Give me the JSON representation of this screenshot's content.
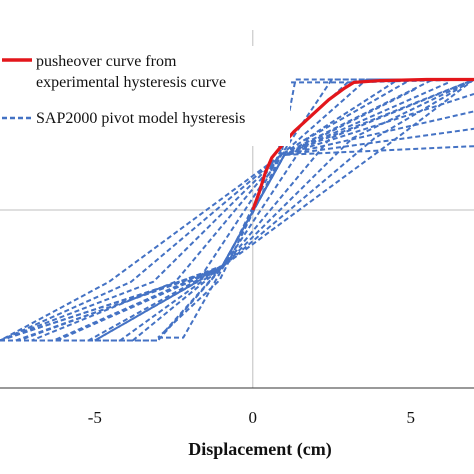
{
  "chart_data": {
    "type": "line",
    "xlabel": "Displacement (cm)",
    "ylabel": "",
    "xlim": [
      -8,
      7
    ],
    "x_ticks": [
      {
        "value": -5,
        "label": "-5"
      },
      {
        "value": 0,
        "label": "0"
      },
      {
        "value": 5,
        "label": "5"
      }
    ],
    "y_reference_line": 0,
    "grid": "major x and y lines at 0",
    "legend": {
      "placement": "top-left",
      "entries": [
        {
          "label_line1": "pusheover curve from",
          "label_line2": "experimental hysteresis curve",
          "color": "#e3161b",
          "style": "solid"
        },
        {
          "label_line1": "SAP2000 pivot model hysteresis",
          "label_line2": "",
          "color": "#4472c4",
          "style": "dashed"
        }
      ]
    },
    "series": [
      {
        "name": "pusheover curve from experimental hysteresis curve",
        "color": "#e3161b",
        "style": "solid",
        "points": [
          [
            0,
            0
          ],
          [
            0.2,
            0.3
          ],
          [
            0.4,
            0.65
          ],
          [
            0.6,
            0.9
          ],
          [
            0.9,
            1.1
          ],
          [
            1.3,
            1.35
          ],
          [
            1.8,
            1.6
          ],
          [
            2.4,
            1.9
          ],
          [
            2.9,
            2.1
          ],
          [
            3.2,
            2.2
          ],
          [
            4.0,
            2.23
          ],
          [
            5.5,
            2.25
          ],
          [
            7.0,
            2.25
          ]
        ]
      },
      {
        "name": "SAP2000 pivot model hysteresis",
        "color": "#4472c4",
        "style": "dashed",
        "loops": [
          {
            "dmax": 3.0,
            "fy": 2.2,
            "rev_pos": 0.35,
            "rev_neg": -2.2
          },
          {
            "dmax": 5.0,
            "fy": 2.25,
            "rev_pos": 1.35,
            "rev_neg": -3.0
          },
          {
            "dmax": 7.0,
            "fy": 2.25,
            "rev_pos": 2.5,
            "rev_neg": -4.2
          },
          {
            "dmax": 9.0,
            "fy": 2.25,
            "rev_pos": 3.6,
            "rev_neg": -5.2
          },
          {
            "dmax": 11.0,
            "fy": 2.25,
            "rev_pos": 4.6,
            "rev_neg": -6.3
          },
          {
            "dmax": 13.0,
            "fy": 2.25,
            "rev_pos": 5.7,
            "rev_neg": -7.4
          }
        ],
        "diagonal_branches": [
          {
            "from": [
              -8.0,
              -2.25
            ],
            "to": [
              5.2,
              2.1
            ]
          },
          {
            "from": [
              -8.0,
              -2.25
            ],
            "to": [
              6.2,
              2.2
            ]
          },
          {
            "from": [
              -7.5,
              -2.25
            ],
            "to": [
              7.0,
              2.25
            ]
          },
          {
            "from": [
              -6.2,
              -2.25
            ],
            "to": [
              7.0,
              2.0
            ]
          },
          {
            "from": [
              -5.0,
              -2.25
            ],
            "to": [
              7.0,
              1.7
            ]
          },
          {
            "from": [
              -3.8,
              -2.25
            ],
            "to": [
              7.0,
              1.4
            ]
          },
          {
            "from": [
              -2.8,
              -2.1
            ],
            "to": [
              7.0,
              1.1
            ]
          }
        ]
      }
    ]
  }
}
